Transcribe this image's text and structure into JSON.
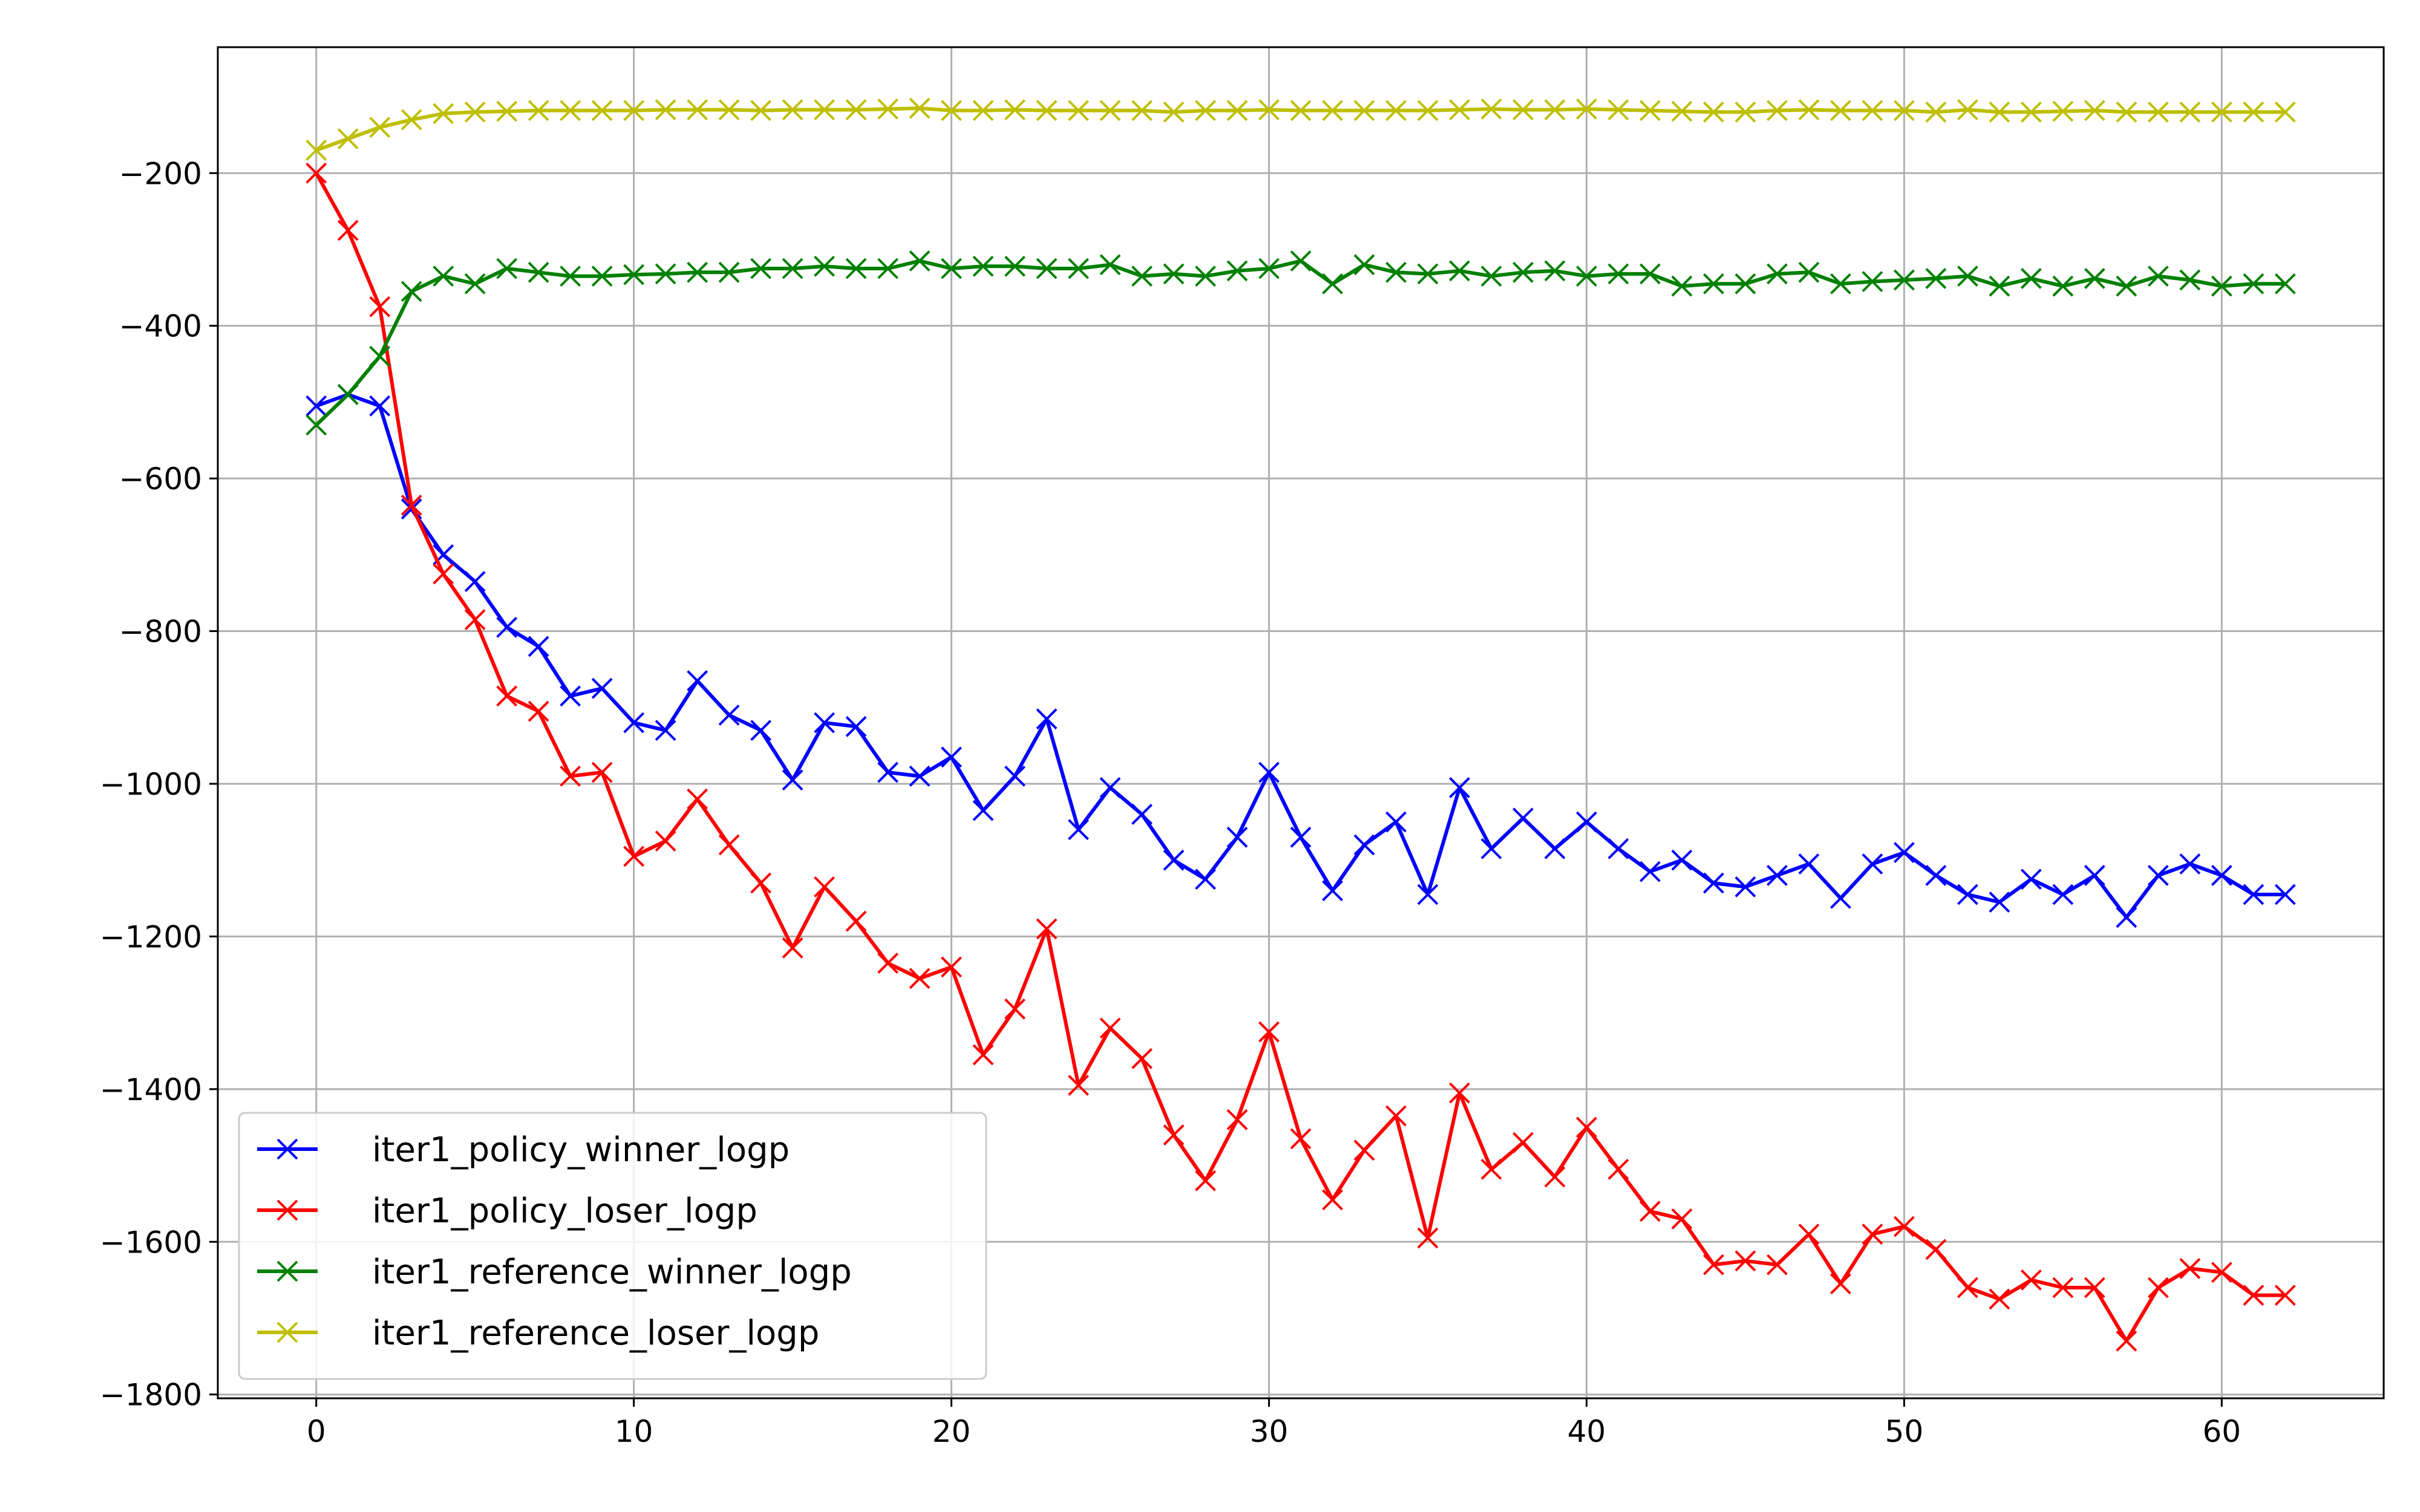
{
  "chart_data": {
    "type": "line",
    "title": "",
    "xlabel": "",
    "ylabel": "",
    "xlim": [
      -3.1,
      65.1
    ],
    "ylim": [
      -1805,
      -35
    ],
    "xticks": [
      0,
      10,
      20,
      30,
      40,
      50,
      60
    ],
    "yticks": [
      -1800,
      -1600,
      -1400,
      -1200,
      -1000,
      -800,
      -600,
      -400,
      -200
    ],
    "grid": true,
    "marker": "x",
    "legend_position": "lower-left",
    "x": [
      0,
      1,
      2,
      3,
      4,
      5,
      6,
      7,
      8,
      9,
      10,
      11,
      12,
      13,
      14,
      15,
      16,
      17,
      18,
      19,
      20,
      21,
      22,
      23,
      24,
      25,
      26,
      27,
      28,
      29,
      30,
      31,
      32,
      33,
      34,
      35,
      36,
      37,
      38,
      39,
      40,
      41,
      42,
      43,
      44,
      45,
      46,
      47,
      48,
      49,
      50,
      51,
      52,
      53,
      54,
      55,
      56,
      57,
      58,
      59,
      60,
      61,
      62
    ],
    "series": [
      {
        "name": "iter1_policy_winner_logp",
        "color": "#0000ff",
        "values": [
          -505,
          -490,
          -505,
          -640,
          -700,
          -735,
          -795,
          -820,
          -885,
          -875,
          -920,
          -930,
          -865,
          -910,
          -930,
          -995,
          -920,
          -925,
          -985,
          -990,
          -965,
          -1035,
          -990,
          -915,
          -1060,
          -1005,
          -1040,
          -1100,
          -1125,
          -1070,
          -985,
          -1070,
          -1140,
          -1080,
          -1050,
          -1145,
          -1005,
          -1085,
          -1045,
          -1085,
          -1050,
          -1085,
          -1115,
          -1100,
          -1130,
          -1135,
          -1120,
          -1105,
          -1150,
          -1105,
          -1090,
          -1120,
          -1145,
          -1155,
          -1125,
          -1145,
          -1120,
          -1175,
          -1120,
          -1105,
          -1120,
          -1145,
          -1145
        ]
      },
      {
        "name": "iter1_policy_loser_logp",
        "color": "#ff0000",
        "values": [
          -200,
          -275,
          -375,
          -635,
          -725,
          -785,
          -885,
          -905,
          -990,
          -985,
          -1095,
          -1075,
          -1020,
          -1080,
          -1130,
          -1215,
          -1135,
          -1180,
          -1235,
          -1255,
          -1240,
          -1355,
          -1295,
          -1190,
          -1395,
          -1320,
          -1360,
          -1460,
          -1520,
          -1440,
          -1325,
          -1465,
          -1545,
          -1480,
          -1435,
          -1595,
          -1405,
          -1505,
          -1470,
          -1515,
          -1450,
          -1505,
          -1560,
          -1570,
          -1630,
          -1625,
          -1630,
          -1590,
          -1655,
          -1590,
          -1580,
          -1610,
          -1660,
          -1675,
          -1650,
          -1660,
          -1660,
          -1730,
          -1660,
          -1635,
          -1640,
          -1670,
          -1670
        ]
      },
      {
        "name": "iter1_reference_winner_logp",
        "color": "#008000",
        "values": [
          -530,
          -490,
          -440,
          -355,
          -335,
          -345,
          -325,
          -330,
          -335,
          -335,
          -333,
          -332,
          -330,
          -330,
          -325,
          -325,
          -322,
          -325,
          -325,
          -315,
          -325,
          -322,
          -322,
          -325,
          -325,
          -320,
          -335,
          -332,
          -335,
          -328,
          -325,
          -315,
          -345,
          -320,
          -330,
          -332,
          -328,
          -335,
          -330,
          -328,
          -335,
          -332,
          -332,
          -348,
          -345,
          -345,
          -332,
          -330,
          -345,
          -342,
          -340,
          -338,
          -335,
          -348,
          -338,
          -348,
          -338,
          -348,
          -335,
          -340,
          -348,
          -345,
          -345
        ]
      },
      {
        "name": "iter1_reference_loser_logp",
        "color": "#bfbf00",
        "values": [
          -170,
          -155,
          -140,
          -130,
          -122,
          -120,
          -119,
          -118,
          -118,
          -118,
          -118,
          -117,
          -117,
          -117,
          -118,
          -117,
          -117,
          -117,
          -116,
          -115,
          -118,
          -118,
          -117,
          -118,
          -118,
          -118,
          -118,
          -120,
          -118,
          -118,
          -117,
          -118,
          -118,
          -118,
          -118,
          -118,
          -117,
          -116,
          -117,
          -117,
          -116,
          -117,
          -118,
          -119,
          -120,
          -120,
          -118,
          -117,
          -118,
          -118,
          -118,
          -120,
          -117,
          -120,
          -120,
          -119,
          -118,
          -120,
          -120,
          -120,
          -120,
          -120,
          -120
        ]
      }
    ]
  }
}
